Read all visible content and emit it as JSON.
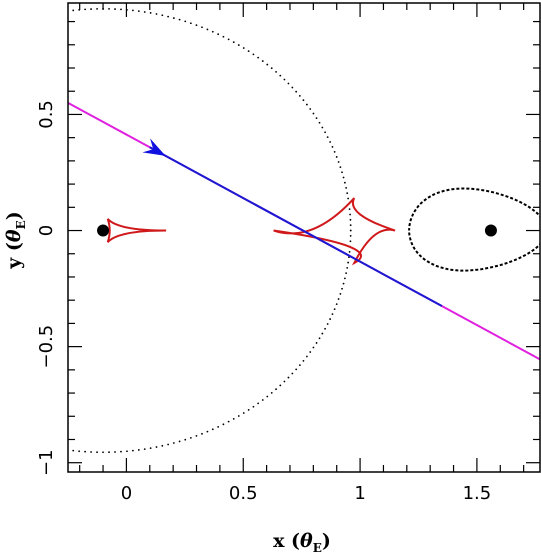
{
  "chart_data": {
    "type": "scatter",
    "xlabel": "x (θE)",
    "xlabel_main": "x",
    "xlabel_unit": "θ",
    "xlabel_sub": "E",
    "ylabel": "y (θE)",
    "ylabel_main": "y",
    "ylabel_unit": "θ",
    "ylabel_sub": "E",
    "xlim": [
      -0.25,
      1.77
    ],
    "ylim": [
      -1.04,
      0.98
    ],
    "x_ticks": [
      0,
      0.5,
      1,
      1.5
    ],
    "x_tick_labels": [
      "0",
      "0.5",
      "1",
      "1.5"
    ],
    "y_ticks": [
      -1,
      -0.5,
      0,
      0.5
    ],
    "y_tick_labels": [
      "−1",
      "−0.5",
      "0",
      "0.5"
    ],
    "grid": false,
    "colors": {
      "critical_curve": "#000000",
      "caustic": "#d0191b",
      "trajectory_outer": "#e020e0",
      "trajectory_inner": "#1a1ad0",
      "arrow": "#1010e0",
      "lens": "#000000"
    },
    "lens_masses": [
      {
        "x": -0.1,
        "y": 0.0
      },
      {
        "x": 1.56,
        "y": 0.0
      }
    ],
    "source_trajectory": {
      "start": {
        "x": -0.25,
        "y": 0.55
      },
      "end": {
        "x": 1.77,
        "y": -0.555
      },
      "highlight_x_range": [
        0.1,
        1.35
      ],
      "arrow_at": {
        "x": 0.13,
        "y": 0.36
      }
    },
    "critical_curve_large": {
      "center_x": -0.1,
      "semi_x": 1.06,
      "semi_y": 0.955,
      "crossing_x": 0.96
    },
    "critical_curve_small": {
      "left_x": 1.21,
      "right_x": 1.77,
      "y_top": 0.21,
      "y_bottom": -0.2
    },
    "caustic_small": {
      "cusp_left": {
        "x": -0.08,
        "y": 0.0
      },
      "cusp_right": {
        "x": 0.17,
        "y": 0.0
      },
      "half_height": 0.05
    },
    "caustic_large": {
      "cusp_left": {
        "x": 0.63,
        "y": 0.0
      },
      "cusp_top": {
        "x": 0.975,
        "y": 0.14
      },
      "cusp_bottom": {
        "x": 0.975,
        "y": -0.14
      },
      "cusp_right": {
        "x": 1.15,
        "y": 0.0
      }
    }
  }
}
